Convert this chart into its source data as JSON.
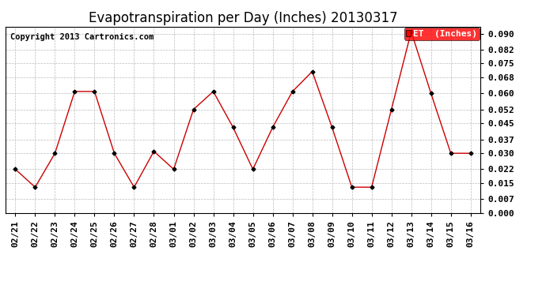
{
  "title": "Evapotranspiration per Day (Inches) 20130317",
  "copyright": "Copyright 2013 Cartronics.com",
  "legend_label": "ET  (Inches)",
  "legend_bg": "#ff0000",
  "legend_text_color": "#ffffff",
  "dates": [
    "02/21",
    "02/22",
    "02/23",
    "02/24",
    "02/25",
    "02/26",
    "02/27",
    "02/28",
    "03/01",
    "03/02",
    "03/03",
    "03/04",
    "03/05",
    "03/06",
    "03/07",
    "03/08",
    "03/09",
    "03/10",
    "03/11",
    "03/12",
    "03/13",
    "03/14",
    "03/15",
    "03/16"
  ],
  "values": [
    0.022,
    0.013,
    0.03,
    0.061,
    0.061,
    0.03,
    0.013,
    0.031,
    0.022,
    0.052,
    0.061,
    0.043,
    0.022,
    0.043,
    0.061,
    0.071,
    0.043,
    0.013,
    0.013,
    0.052,
    0.091,
    0.06,
    0.03,
    0.03
  ],
  "ylim": [
    0.0,
    0.0935
  ],
  "yticks": [
    0.0,
    0.007,
    0.015,
    0.022,
    0.03,
    0.037,
    0.045,
    0.052,
    0.06,
    0.068,
    0.075,
    0.082,
    0.09
  ],
  "line_color": "#cc0000",
  "marker_color": "#000000",
  "bg_color": "#ffffff",
  "grid_color": "#bbbbbb",
  "title_fontsize": 12,
  "tick_fontsize": 8,
  "copyright_fontsize": 7.5,
  "legend_fontsize": 8
}
